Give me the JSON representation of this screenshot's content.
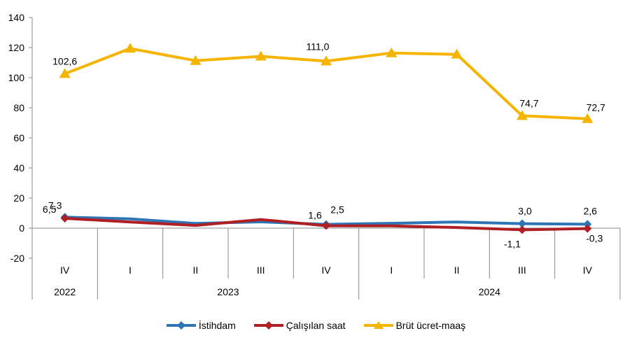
{
  "chart_data": {
    "type": "line",
    "quarters": [
      "IV",
      "I",
      "II",
      "III",
      "IV",
      "I",
      "II",
      "III",
      "IV"
    ],
    "years": [
      {
        "label": "2022",
        "span": 1
      },
      {
        "label": "2023",
        "span": 4
      },
      {
        "label": "2024",
        "span": 4
      }
    ],
    "ylim": [
      -20,
      140
    ],
    "yticks": [
      -20,
      0,
      20,
      40,
      60,
      80,
      100,
      120,
      140
    ],
    "series": [
      {
        "name": "İstihdam",
        "color": "#2e75b6",
        "marker": "diamond",
        "values": [
          7.3,
          6.2,
          3.1,
          4.2,
          2.5,
          3.2,
          4.1,
          3.0,
          2.6
        ],
        "labels": {
          "0": "7,3",
          "4": "2,5",
          "7": "3,0",
          "8": "2,6"
        }
      },
      {
        "name": "Çalışılan saat",
        "color": "#b01f24",
        "marker": "diamond",
        "values": [
          6.5,
          4.1,
          1.8,
          5.7,
          1.6,
          1.5,
          0.4,
          -1.1,
          -0.3
        ],
        "labels": {
          "0": "6,5",
          "4": "1,6",
          "7": "-1,1",
          "8": "-0,3"
        }
      },
      {
        "name": "Brüt ücret-maaş",
        "color": "#f4b400",
        "marker": "triangle",
        "values": [
          102.6,
          119.4,
          111.3,
          114.2,
          111.0,
          116.4,
          115.5,
          74.7,
          72.7
        ],
        "labels": {
          "0": "102,6",
          "4": "111,0",
          "7": "74,7",
          "8": "72,7"
        }
      }
    ]
  }
}
